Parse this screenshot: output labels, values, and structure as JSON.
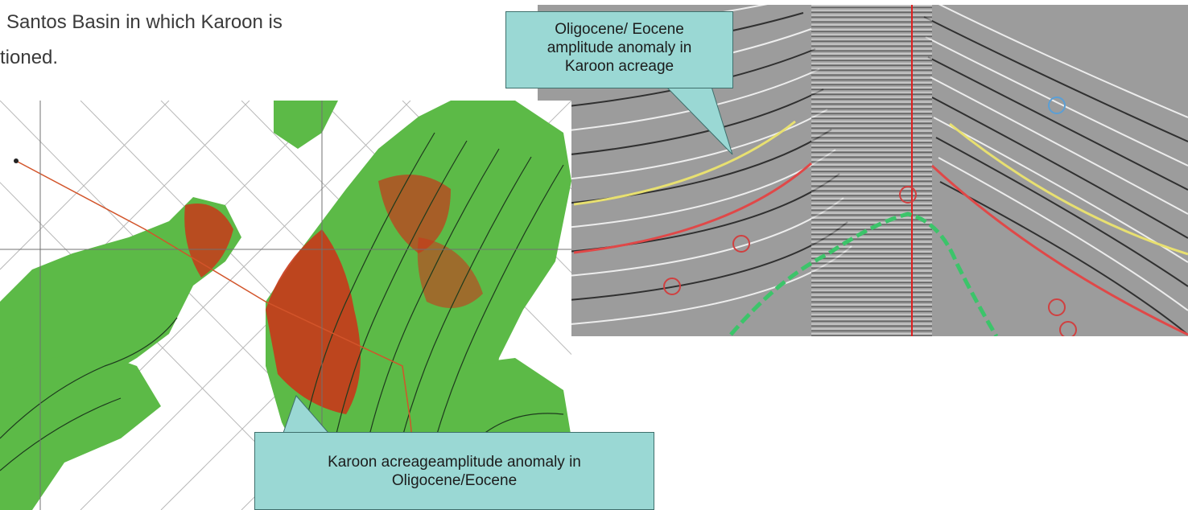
{
  "intro": {
    "lines": [
      "Santos Basin in which Karoon is",
      "tioned."
    ]
  },
  "callouts": {
    "seismic": {
      "lines": [
        "Oligocene/ Eocene",
        "amplitude anomaly in",
        "Karoon acreage"
      ]
    },
    "map": {
      "lines": [
        "Karoon acreageamplitude anomaly in",
        "Oligocene/Eocene"
      ]
    }
  },
  "colors": {
    "callout_fill": "#9ad8d4",
    "callout_border": "#3e6f6c",
    "map_green": "#5cba47",
    "map_red": "#c8381a",
    "seismic_gray": "#9a9a9a",
    "horizon_yellow": "#e8e070",
    "horizon_red": "#e04848",
    "marker_green": "#3cc46a",
    "marker_blue": "#5a9fd6"
  }
}
